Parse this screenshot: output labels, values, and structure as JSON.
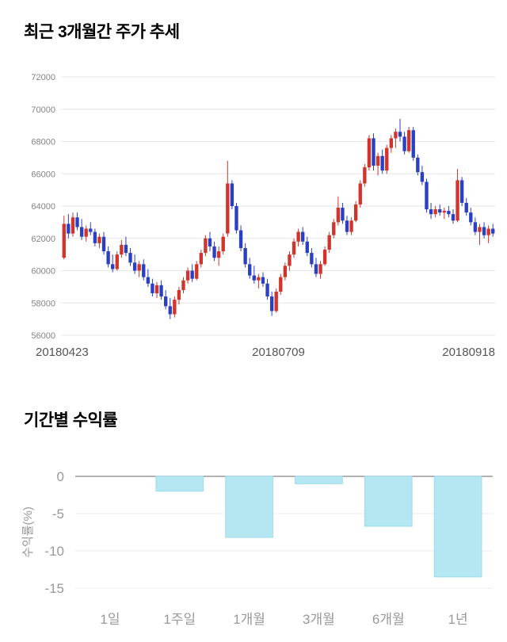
{
  "titles": {
    "price_trend": "최근 3개월간 주가 추세",
    "period_returns": "기간별 수익률"
  },
  "chart_data": [
    {
      "type": "candlestick",
      "title": "최근 3개월간 주가 추세",
      "ylim": [
        56000,
        72000
      ],
      "y_ticks": [
        56000,
        58000,
        60000,
        62000,
        64000,
        66000,
        68000,
        70000,
        72000
      ],
      "x_tick_labels": [
        "20180423",
        "20180709",
        "20180918"
      ],
      "grid": true,
      "legend": false,
      "colors": {
        "up": "#d0342c",
        "down": "#2b3fc2",
        "grid": "#e6e6e6",
        "y_tick_text": "#848484",
        "x_tick_text": "#555555"
      },
      "candles_format": [
        "open",
        "high",
        "low",
        "close"
      ],
      "candles": [
        [
          60800,
          63400,
          60700,
          62900
        ],
        [
          62900,
          63500,
          62000,
          62300
        ],
        [
          62300,
          63600,
          62100,
          63300
        ],
        [
          63300,
          63600,
          62500,
          62700
        ],
        [
          62700,
          63200,
          61900,
          62100
        ],
        [
          62100,
          62800,
          61800,
          62600
        ],
        [
          62600,
          63000,
          62200,
          62400
        ],
        [
          62400,
          62600,
          61500,
          61700
        ],
        [
          61700,
          62300,
          61400,
          62100
        ],
        [
          62100,
          62400,
          61000,
          61200
        ],
        [
          61200,
          61500,
          60200,
          60400
        ],
        [
          60400,
          61000,
          59900,
          60100
        ],
        [
          60100,
          61200,
          60000,
          61000
        ],
        [
          61000,
          61900,
          60800,
          61600
        ],
        [
          61600,
          62100,
          60900,
          61100
        ],
        [
          61100,
          61400,
          60300,
          60500
        ],
        [
          60500,
          61000,
          59800,
          60000
        ],
        [
          60000,
          60600,
          59600,
          60400
        ],
        [
          60400,
          60700,
          59400,
          59600
        ],
        [
          59600,
          60100,
          59000,
          59200
        ],
        [
          59200,
          59500,
          58400,
          58600
        ],
        [
          58600,
          59300,
          58300,
          59100
        ],
        [
          59100,
          59400,
          58200,
          58400
        ],
        [
          58400,
          58800,
          57600,
          57800
        ],
        [
          57800,
          58300,
          57000,
          57300
        ],
        [
          57300,
          58400,
          57100,
          58200
        ],
        [
          58200,
          59000,
          57900,
          58800
        ],
        [
          58800,
          59600,
          58600,
          59400
        ],
        [
          59400,
          60200,
          59200,
          60000
        ],
        [
          60000,
          60400,
          59300,
          59500
        ],
        [
          59500,
          60600,
          59400,
          60400
        ],
        [
          60400,
          61300,
          60200,
          61100
        ],
        [
          61100,
          62200,
          60900,
          62000
        ],
        [
          62000,
          62400,
          61200,
          61500
        ],
        [
          61500,
          61800,
          60600,
          60800
        ],
        [
          60800,
          61500,
          60300,
          61200
        ],
        [
          61200,
          62300,
          61000,
          62100
        ],
        [
          62300,
          66800,
          62100,
          65400
        ],
        [
          65400,
          65600,
          63800,
          64000
        ],
        [
          64000,
          64200,
          62300,
          62500
        ],
        [
          62500,
          62800,
          61200,
          61400
        ],
        [
          61400,
          61700,
          60200,
          60400
        ],
        [
          60400,
          60800,
          59500,
          59700
        ],
        [
          59700,
          60300,
          59200,
          59400
        ],
        [
          59400,
          59800,
          58900,
          59600
        ],
        [
          59600,
          59900,
          59000,
          59200
        ],
        [
          59200,
          59500,
          58200,
          58400
        ],
        [
          58400,
          58700,
          57200,
          57500
        ],
        [
          57500,
          58900,
          57400,
          58700
        ],
        [
          58700,
          59800,
          58500,
          59600
        ],
        [
          59600,
          60500,
          59400,
          60300
        ],
        [
          60300,
          61200,
          60000,
          61000
        ],
        [
          61000,
          62000,
          60800,
          61800
        ],
        [
          61800,
          62600,
          61500,
          62400
        ],
        [
          62400,
          62700,
          61600,
          61800
        ],
        [
          61800,
          62100,
          60900,
          61100
        ],
        [
          61100,
          61400,
          60200,
          60400
        ],
        [
          60400,
          60800,
          59600,
          59800
        ],
        [
          59800,
          60600,
          59500,
          60400
        ],
        [
          60400,
          61500,
          60300,
          61300
        ],
        [
          61300,
          62400,
          61100,
          62200
        ],
        [
          62200,
          63200,
          62000,
          63000
        ],
        [
          63000,
          64600,
          62800,
          63900
        ],
        [
          63900,
          64200,
          62900,
          63100
        ],
        [
          63100,
          63400,
          62200,
          62400
        ],
        [
          62400,
          63300,
          62200,
          63100
        ],
        [
          63100,
          64300,
          63000,
          64100
        ],
        [
          64100,
          65600,
          63900,
          65400
        ],
        [
          65400,
          66600,
          65200,
          66400
        ],
        [
          66400,
          68400,
          66200,
          68200
        ],
        [
          68200,
          68500,
          66200,
          66500
        ],
        [
          66500,
          67300,
          65900,
          67100
        ],
        [
          67100,
          67500,
          66000,
          66200
        ],
        [
          66200,
          67800,
          66000,
          67600
        ],
        [
          67600,
          68400,
          67300,
          68200
        ],
        [
          68200,
          68800,
          67600,
          68600
        ],
        [
          68600,
          69400,
          68000,
          68300
        ],
        [
          68300,
          68600,
          67200,
          67400
        ],
        [
          67400,
          68900,
          67300,
          68700
        ],
        [
          68700,
          68900,
          66800,
          67000
        ],
        [
          67000,
          67200,
          65900,
          66100
        ],
        [
          66100,
          66500,
          65300,
          65500
        ],
        [
          65500,
          65700,
          63600,
          63800
        ],
        [
          63800,
          64200,
          63200,
          63500
        ],
        [
          63500,
          64000,
          63300,
          63800
        ],
        [
          63800,
          64100,
          63400,
          63600
        ],
        [
          63600,
          63900,
          63200,
          63700
        ],
        [
          63700,
          64000,
          63300,
          63500
        ],
        [
          63500,
          63800,
          62900,
          63100
        ],
        [
          63100,
          66300,
          63000,
          65600
        ],
        [
          65600,
          65800,
          64000,
          64200
        ],
        [
          64200,
          64500,
          63400,
          63600
        ],
        [
          63600,
          63900,
          62800,
          63000
        ],
        [
          63000,
          63300,
          62200,
          62400
        ],
        [
          62400,
          62900,
          61600,
          62700
        ],
        [
          62700,
          63000,
          62000,
          62200
        ],
        [
          62200,
          62800,
          61700,
          62600
        ],
        [
          62600,
          62900,
          62100,
          62300
        ]
      ]
    },
    {
      "type": "bar",
      "title": "기간별 수익률",
      "ylabel": "수익률(%)",
      "categories": [
        "1일",
        "1주일",
        "1개월",
        "3개월",
        "6개월",
        "1년"
      ],
      "values": [
        0,
        -2.0,
        -8.2,
        -1.0,
        -6.7,
        -13.5
      ],
      "ylim": [
        -15,
        0
      ],
      "y_ticks": [
        0,
        -5,
        -10,
        -15
      ],
      "grid": true,
      "legend": false,
      "colors": {
        "bar_fill": "#b5e7f2",
        "bar_stroke": "#9edcec",
        "grid": "#ebebeb",
        "zero_line": "#999999",
        "axis_text": "#999999"
      }
    }
  ]
}
